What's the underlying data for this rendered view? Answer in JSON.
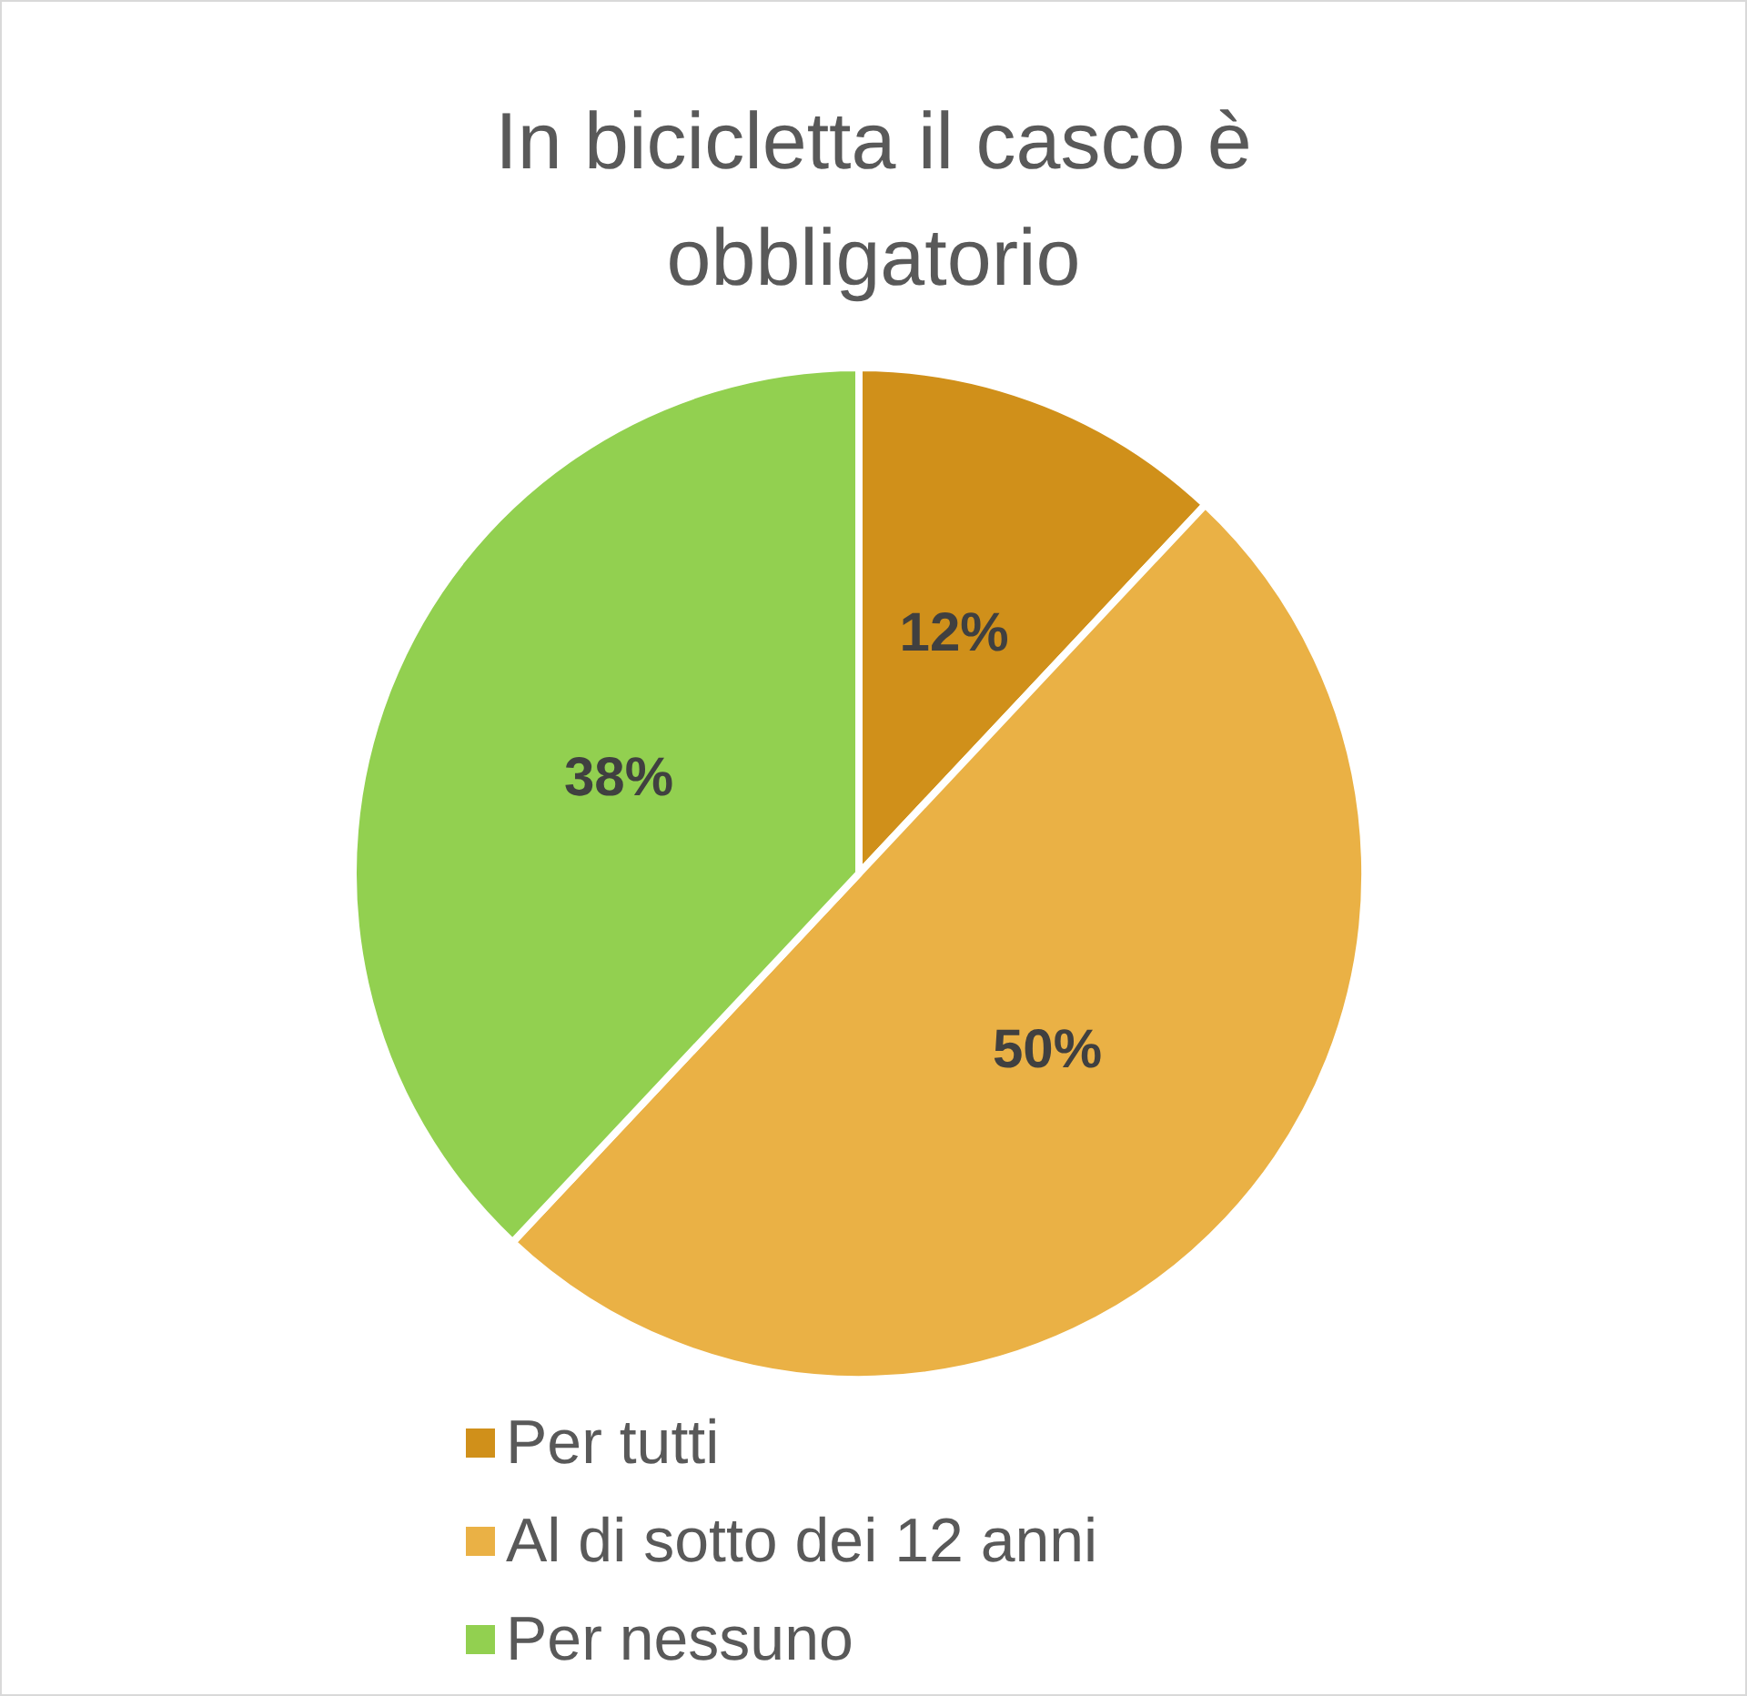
{
  "chart_data": {
    "type": "pie",
    "title": "In bicicletta il casco è\nobbligatorio",
    "categories": [
      "Per tutti",
      "Al di sotto dei 12 anni",
      "Per nessuno"
    ],
    "values": [
      12,
      50,
      38
    ],
    "colors": [
      "#d0901a",
      "#eab145",
      "#92d050"
    ],
    "value_labels": [
      "12%",
      "50%",
      "38%"
    ],
    "legend": "bottom"
  }
}
